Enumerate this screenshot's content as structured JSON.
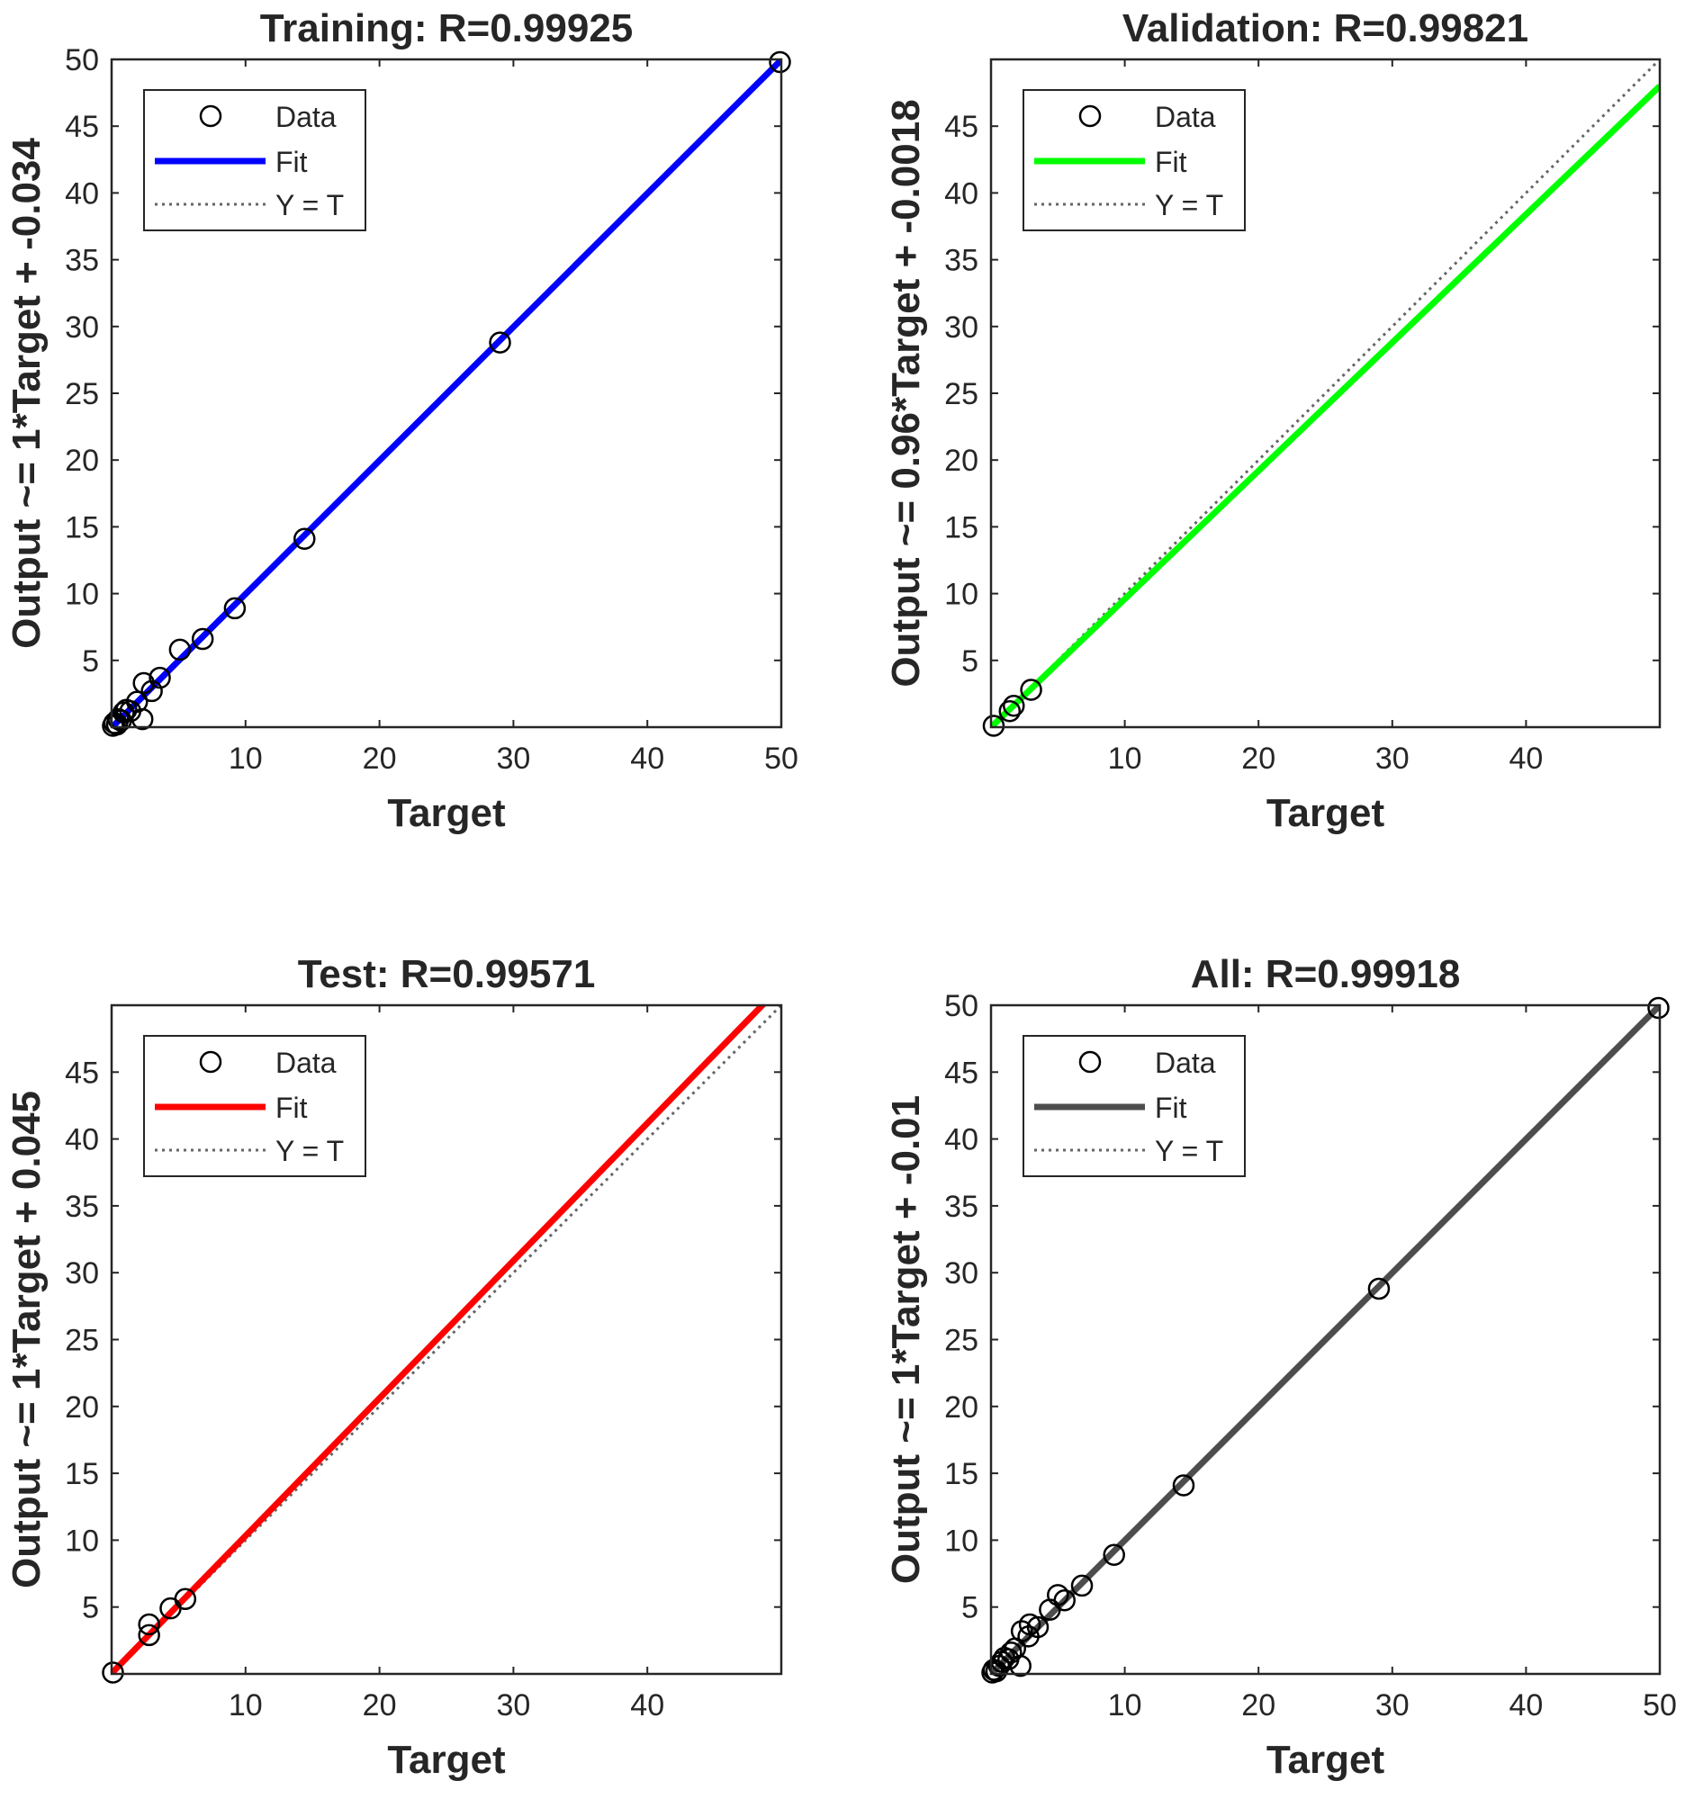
{
  "chart_data": [
    {
      "type": "scatter",
      "title": "Training: R=0.99925",
      "xlabel": "Target",
      "ylabel": "Output ~= 1*Target + -0.034",
      "xlim": [
        0,
        50
      ],
      "ylim": [
        0,
        50
      ],
      "xticks": [
        10,
        20,
        30,
        40,
        50
      ],
      "yticks": [
        5,
        10,
        15,
        20,
        25,
        30,
        35,
        40,
        45,
        50
      ],
      "fit_color": "#0000ff",
      "fit": {
        "slope": 1,
        "intercept": -0.034
      },
      "legend": {
        "data": "Data",
        "fit": "Fit",
        "identity": "Y = T",
        "position": "top-left"
      },
      "points": [
        {
          "x": 0.1,
          "y": 0.1
        },
        {
          "x": 0.2,
          "y": 0.3
        },
        {
          "x": 0.4,
          "y": 0.2
        },
        {
          "x": 0.5,
          "y": 0.6
        },
        {
          "x": 0.7,
          "y": 0.5
        },
        {
          "x": 0.9,
          "y": 1.1
        },
        {
          "x": 1.1,
          "y": 1.3
        },
        {
          "x": 1.4,
          "y": 1.2
        },
        {
          "x": 1.9,
          "y": 1.9
        },
        {
          "x": 2.3,
          "y": 0.6
        },
        {
          "x": 2.4,
          "y": 3.3
        },
        {
          "x": 3.0,
          "y": 2.7
        },
        {
          "x": 3.6,
          "y": 3.7
        },
        {
          "x": 5.1,
          "y": 5.8
        },
        {
          "x": 6.8,
          "y": 6.6
        },
        {
          "x": 9.2,
          "y": 8.9
        },
        {
          "x": 14.4,
          "y": 14.1
        },
        {
          "x": 29.0,
          "y": 28.8
        },
        {
          "x": 49.9,
          "y": 49.8
        }
      ]
    },
    {
      "type": "scatter",
      "title": "Validation: R=0.99821",
      "xlabel": "Target",
      "ylabel": "Output ~= 0.96*Target + -0.0018",
      "xlim": [
        0,
        50
      ],
      "ylim": [
        0,
        50
      ],
      "xticks": [
        10,
        20,
        30,
        40
      ],
      "yticks": [
        5,
        10,
        15,
        20,
        25,
        30,
        35,
        40,
        45
      ],
      "fit_color": "#00ff00",
      "fit": {
        "slope": 0.96,
        "intercept": -0.0018
      },
      "legend": {
        "data": "Data",
        "fit": "Fit",
        "identity": "Y = T",
        "position": "top-left"
      },
      "points": [
        {
          "x": 0.2,
          "y": 0.1
        },
        {
          "x": 1.4,
          "y": 1.2
        },
        {
          "x": 1.7,
          "y": 1.6
        },
        {
          "x": 3.0,
          "y": 2.8
        }
      ]
    },
    {
      "type": "scatter",
      "title": "Test: R=0.99571",
      "xlabel": "Target",
      "ylabel": "Output ~= 1*Target + 0.045",
      "xlim": [
        0,
        50
      ],
      "ylim": [
        0,
        50
      ],
      "xticks": [
        10,
        20,
        30,
        40
      ],
      "yticks": [
        5,
        10,
        15,
        20,
        25,
        30,
        35,
        40,
        45
      ],
      "fit_color": "#ff0000",
      "fit": {
        "slope": 1.0283,
        "intercept": 0.045
      },
      "legend": {
        "data": "Data",
        "fit": "Fit",
        "identity": "Y = T",
        "position": "top-left"
      },
      "points": [
        {
          "x": 0.1,
          "y": 0.1
        },
        {
          "x": 2.8,
          "y": 3.7
        },
        {
          "x": 2.8,
          "y": 2.9
        },
        {
          "x": 4.4,
          "y": 4.9
        },
        {
          "x": 5.5,
          "y": 5.6
        }
      ]
    },
    {
      "type": "scatter",
      "title": "All: R=0.99918",
      "xlabel": "Target",
      "ylabel": "Output ~= 1*Target + -0.01",
      "xlim": [
        0,
        50
      ],
      "ylim": [
        0,
        50
      ],
      "xticks": [
        10,
        20,
        30,
        40,
        50
      ],
      "yticks": [
        5,
        10,
        15,
        20,
        25,
        30,
        35,
        40,
        45,
        50
      ],
      "fit_color": "#4d4d4d",
      "fit": {
        "slope": 1,
        "intercept": -0.01
      },
      "legend": {
        "data": "Data",
        "fit": "Fit",
        "identity": "Y = T",
        "position": "top-left"
      },
      "points": [
        {
          "x": 0.1,
          "y": 0.1
        },
        {
          "x": 0.2,
          "y": 0.3
        },
        {
          "x": 0.4,
          "y": 0.2
        },
        {
          "x": 0.6,
          "y": 0.6
        },
        {
          "x": 0.8,
          "y": 0.9
        },
        {
          "x": 1.0,
          "y": 1.2
        },
        {
          "x": 1.3,
          "y": 1.1
        },
        {
          "x": 1.5,
          "y": 1.6
        },
        {
          "x": 1.8,
          "y": 1.9
        },
        {
          "x": 2.2,
          "y": 0.6
        },
        {
          "x": 2.3,
          "y": 3.2
        },
        {
          "x": 2.8,
          "y": 2.8
        },
        {
          "x": 2.9,
          "y": 3.7
        },
        {
          "x": 3.5,
          "y": 3.5
        },
        {
          "x": 4.4,
          "y": 4.8
        },
        {
          "x": 5.0,
          "y": 5.9
        },
        {
          "x": 5.5,
          "y": 5.5
        },
        {
          "x": 6.8,
          "y": 6.6
        },
        {
          "x": 9.2,
          "y": 8.9
        },
        {
          "x": 14.4,
          "y": 14.1
        },
        {
          "x": 29.0,
          "y": 28.8
        },
        {
          "x": 49.9,
          "y": 49.8
        }
      ]
    }
  ]
}
